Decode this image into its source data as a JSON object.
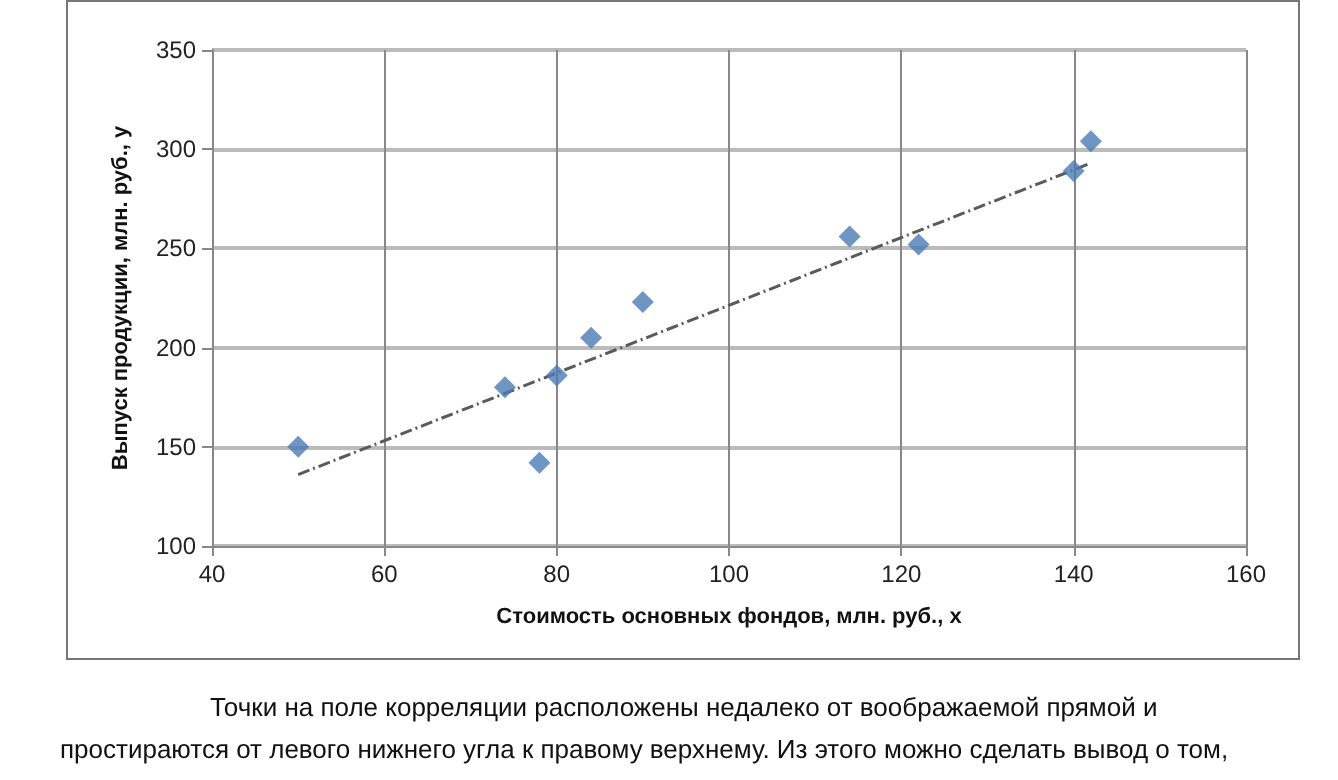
{
  "chart_data": {
    "type": "scatter",
    "xlabel": "Стоимость основных фондов, млн. руб., x",
    "ylabel": "Выпуск продукции, млн. руб., y",
    "series": [
      {
        "color": "#4a7ab5",
        "x": [
          50,
          74,
          78,
          80,
          84,
          90,
          114,
          122,
          140,
          142
        ],
        "values": [
          150,
          180,
          142,
          186,
          205,
          223,
          256,
          252,
          289,
          304
        ],
        "marker": "diamond"
      },
      {
        "type": "line",
        "color": "#5a5a5a",
        "line_style": "dashed",
        "marker": "none",
        "x": [
          50,
          142
        ],
        "values": [
          136,
          293
        ]
      }
    ],
    "xlim": [
      40,
      160
    ],
    "xticks": [
      40,
      60,
      80,
      100,
      120,
      140,
      160
    ],
    "ylim": [
      100,
      350
    ],
    "yticks": [
      100,
      150,
      200,
      250,
      300,
      350
    ],
    "grid": true,
    "annotations": [
      "Точки на поле корреляции расположены недалеко от воображаемой прямой и простираются от левого нижнего угла к правому верхнему. Из этого можно сделать вывод о том,"
    ]
  }
}
